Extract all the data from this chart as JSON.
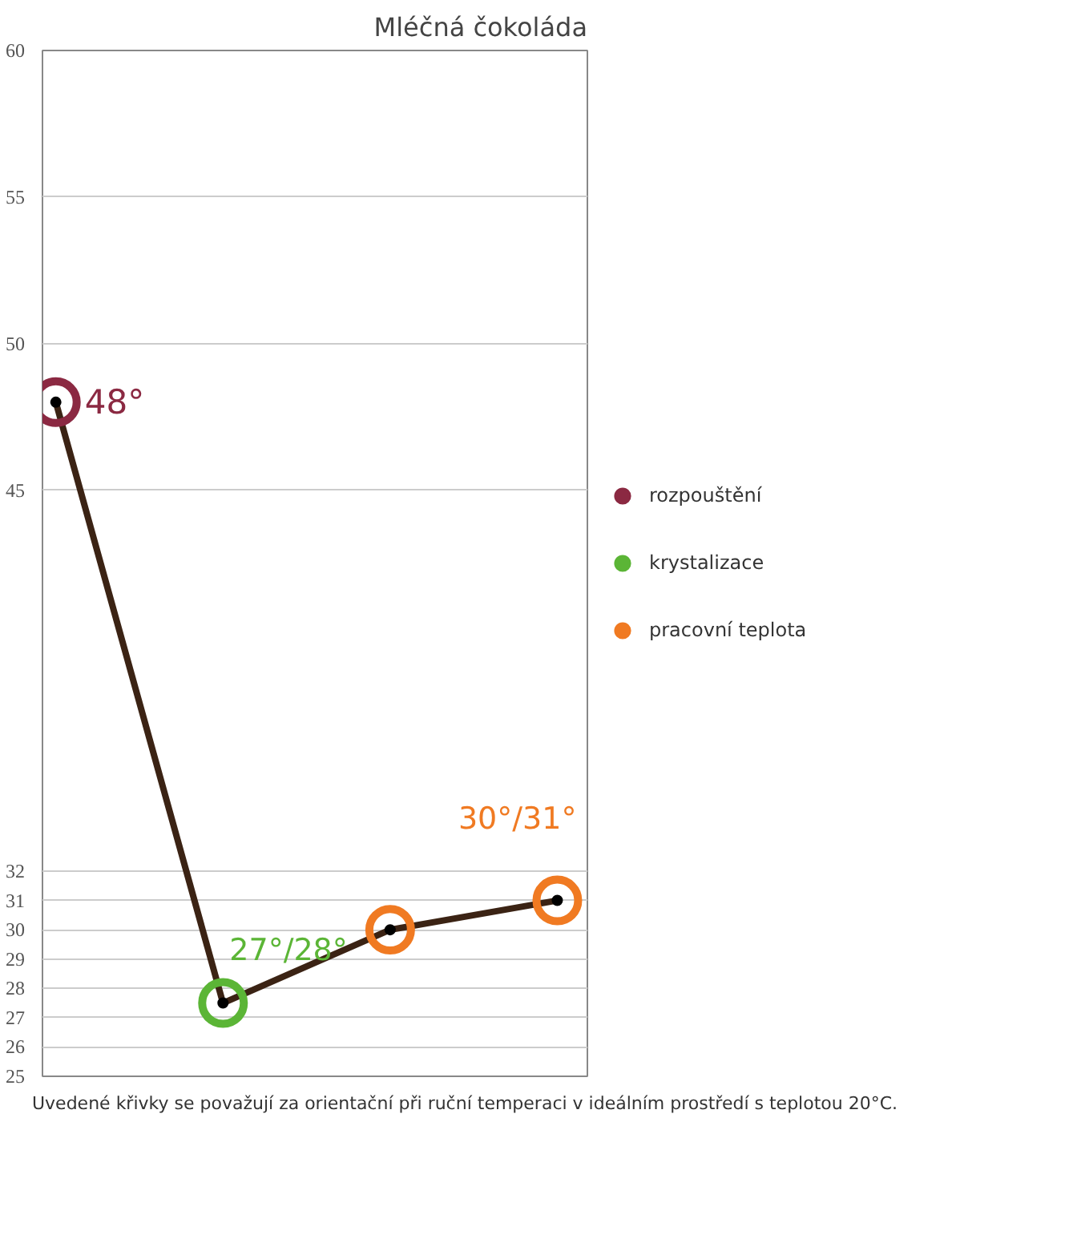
{
  "chart_data": {
    "type": "line",
    "title": "Mléčná čokoláda",
    "categories": [
      null,
      null,
      null,
      null
    ],
    "series": [
      {
        "color": "#3b2314",
        "values": [
          48,
          27.5,
          30,
          31
        ]
      },
      {
        "type": "scatter",
        "name": "rozpouštění",
        "color": "#8b2942",
        "values": [
          48,
          null,
          null,
          null
        ],
        "value_labels": [
          "48°",
          null,
          null,
          null
        ]
      },
      {
        "type": "scatter",
        "name": "krystalizace",
        "color": "#5bb536",
        "values": [
          null,
          27.5,
          null,
          null
        ],
        "value_labels": [
          null,
          "27°/28°",
          null,
          null
        ]
      },
      {
        "type": "scatter",
        "name": "pracovní teplota",
        "color": "#f07a22",
        "values": [
          null,
          null,
          30,
          31
        ],
        "value_labels": [
          null,
          null,
          null,
          "30°/31°"
        ]
      }
    ],
    "ylim": [
      25,
      60
    ],
    "yticks": [
      25,
      26,
      27,
      28,
      29,
      30,
      31,
      32,
      45,
      50,
      55,
      60
    ],
    "grid": "y",
    "legend": "right",
    "marker": "circle",
    "tick_labels": "y",
    "annotations": [
      "Uvedené křivky se považují za orientační při ruční temperaci v ideálním prostředí s teplotou 20°C."
    ]
  }
}
